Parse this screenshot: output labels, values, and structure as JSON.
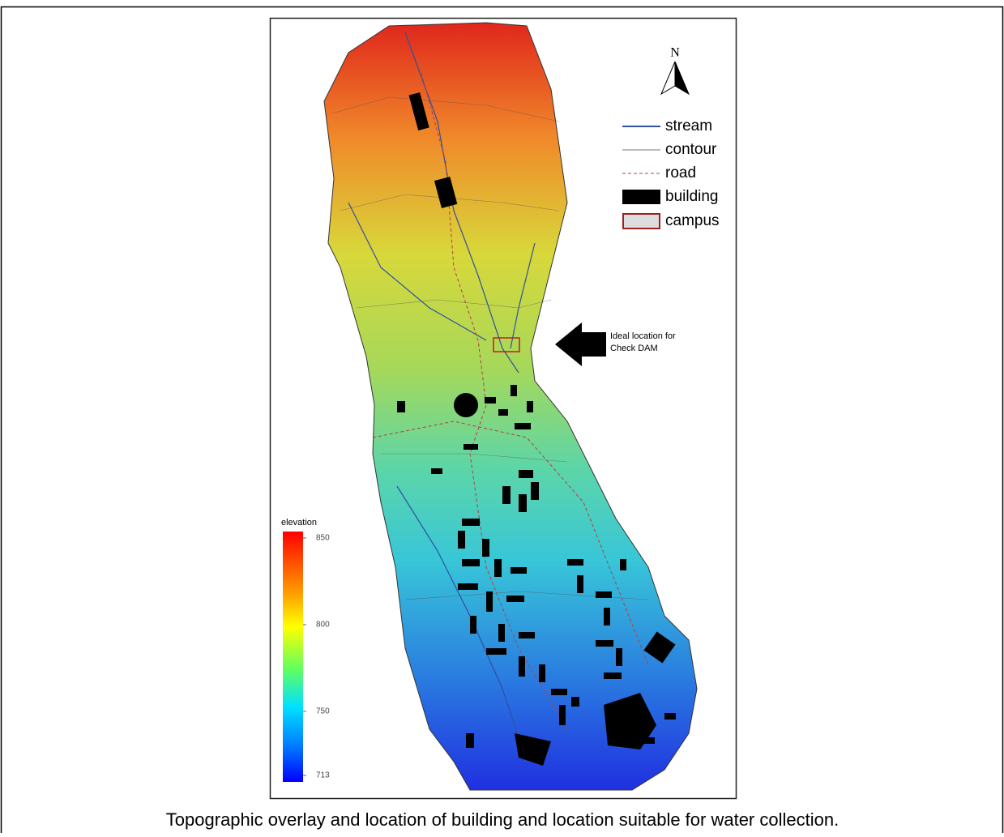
{
  "figure": {
    "north": "N",
    "legend": [
      {
        "label": "stream"
      },
      {
        "label": "contour"
      },
      {
        "label": "road"
      },
      {
        "label": "building"
      },
      {
        "label": "campus"
      }
    ],
    "annotation": [
      "Ideal location for",
      "Check DAM"
    ],
    "colorbar": {
      "title": "elevation",
      "range": [
        713,
        850
      ],
      "ticks": [
        850,
        800,
        750,
        713
      ]
    },
    "caption": "Topographic overlay and location of building and location suitable for water collection."
  }
}
